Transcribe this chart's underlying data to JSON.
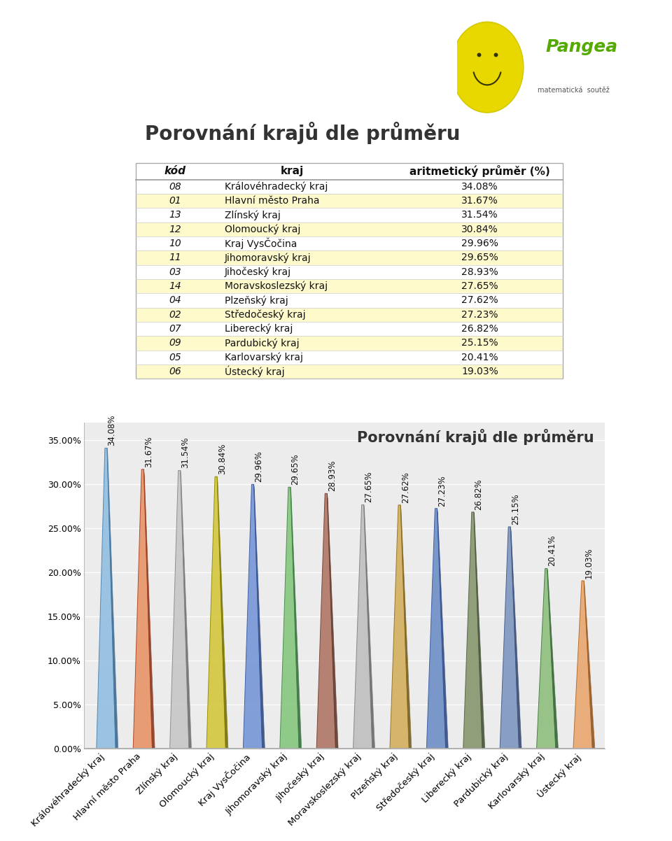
{
  "title": "Porovnání krajů dle průměru",
  "table_header": [
    "kód",
    "kraj",
    "aritmetický průměr (%)"
  ],
  "rows": [
    [
      "08",
      "Královéhradecký kraj",
      "34.08%"
    ],
    [
      "01",
      "Hlavní město Praha",
      "31.67%"
    ],
    [
      "13",
      "Zlínský kraj",
      "31.54%"
    ],
    [
      "12",
      "Olomoucký kraj",
      "30.84%"
    ],
    [
      "10",
      "Kraj VysČočina",
      "29.96%"
    ],
    [
      "11",
      "Jihomoravský kraj",
      "29.65%"
    ],
    [
      "03",
      "Jihočeský kraj",
      "28.93%"
    ],
    [
      "14",
      "Moravskoslezský kraj",
      "27.65%"
    ],
    [
      "04",
      "Plzeňský kraj",
      "27.62%"
    ],
    [
      "02",
      "Středočeský kraj",
      "27.23%"
    ],
    [
      "07",
      "Liberecký kraj",
      "26.82%"
    ],
    [
      "09",
      "Pardubický kraj",
      "25.15%"
    ],
    [
      "05",
      "Karlovarský kraj",
      "20.41%"
    ],
    [
      "06",
      "Ústecký kraj",
      "19.03%"
    ]
  ],
  "values": [
    34.08,
    31.67,
    31.54,
    30.84,
    29.96,
    29.65,
    28.93,
    27.65,
    27.62,
    27.23,
    26.82,
    25.15,
    20.41,
    19.03
  ],
  "labels": [
    "Královéhradecký kraj",
    "Hlavní město Praha",
    "Zlínský kraj",
    "Olomoucký kraj",
    "Kraj VysČočina",
    "Jihomoravský kraj",
    "Jihočeský kraj",
    "Moravskoslezský kraj",
    "Plzeňský kraj",
    "Středočeský kraj",
    "Liberecký kraj",
    "Pardubický kraj",
    "Karlovarský kraj",
    "Ústecký kraj"
  ],
  "bar_face_colors": [
    "#92c0e0",
    "#e8956a",
    "#c8c8c8",
    "#d4c840",
    "#7898d8",
    "#88c880",
    "#b07868",
    "#c0c0c0",
    "#d4b060",
    "#7090c8",
    "#889870",
    "#8098c0",
    "#90c080",
    "#e8a870"
  ],
  "bar_dark_colors": [
    "#4a80b0",
    "#a84020",
    "#888888",
    "#908800",
    "#3858a0",
    "#408848",
    "#704030",
    "#808080",
    "#907020",
    "#3858a0",
    "#506040",
    "#405888",
    "#407840",
    "#b06828"
  ],
  "value_labels": [
    "34.08%",
    "31.67%",
    "31.54%",
    "30.84%",
    "29.96%",
    "29.65%",
    "28.93%",
    "27.65%",
    "27.62%",
    "27.23%",
    "26.82%",
    "25.15%",
    "20.41%",
    "19.03%"
  ],
  "ylim": [
    0,
    37
  ],
  "yticks": [
    0,
    5,
    10,
    15,
    20,
    25,
    30,
    35
  ],
  "ytick_labels": [
    "0.00%",
    "5.00%",
    "10.00%",
    "15.00%",
    "20.00%",
    "25.00%",
    "30.00%",
    "35.00%"
  ],
  "table_bg_yellow": "#fffacc",
  "table_bg_white": "#ffffff",
  "background_color": "#ffffff"
}
